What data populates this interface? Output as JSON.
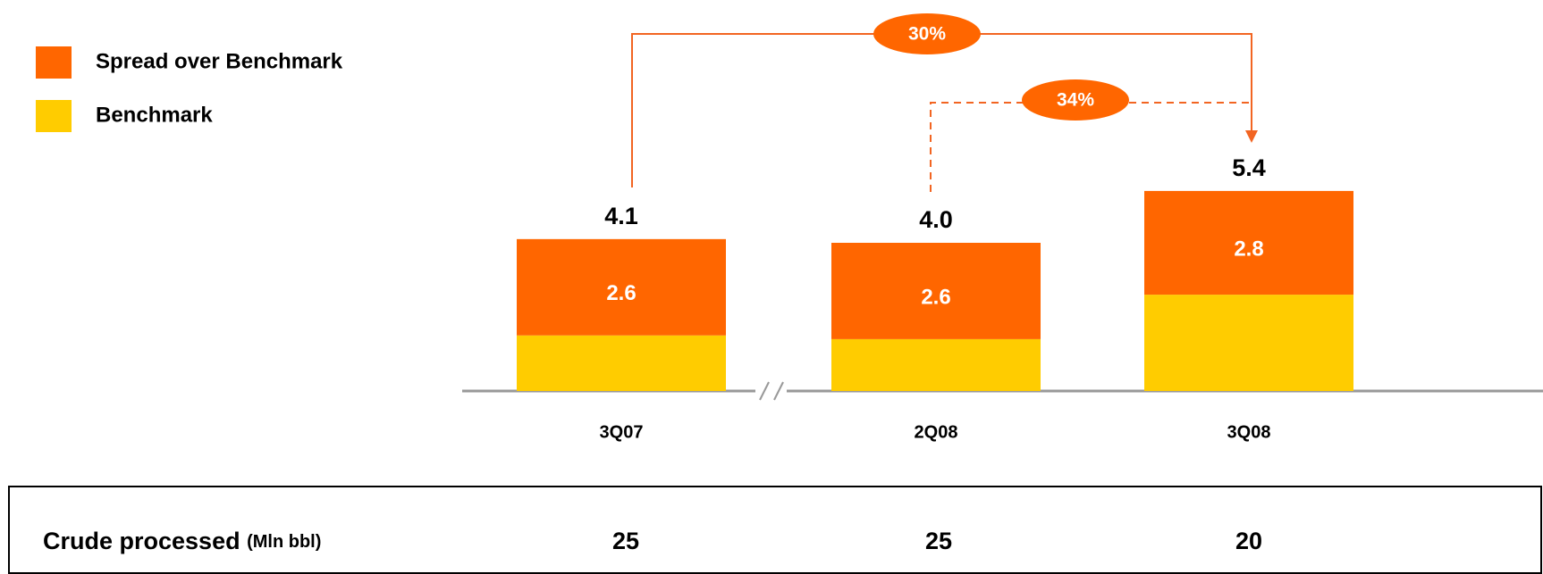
{
  "chart_data": {
    "type": "stacked_bar",
    "categories": [
      "3Q07",
      "2Q08",
      "3Q08"
    ],
    "series": [
      {
        "name": "Benchmark",
        "color": "#ffcc00",
        "values": [
          1.5,
          1.4,
          2.6
        ]
      },
      {
        "name": "Spread over Benchmark",
        "color": "#ff6600",
        "values": [
          2.6,
          2.6,
          2.8
        ],
        "value_labels": [
          "2.6",
          "2.6",
          "2.8"
        ]
      }
    ],
    "totals": [
      4.1,
      4.0,
      5.4
    ],
    "total_labels": [
      "4.1",
      "4.0",
      "5.4"
    ],
    "annotations": [
      "30%",
      "34%"
    ]
  },
  "table": {
    "label": "Crude processed",
    "unit": "(Mln bbl)",
    "values": [
      25,
      25,
      20
    ]
  }
}
